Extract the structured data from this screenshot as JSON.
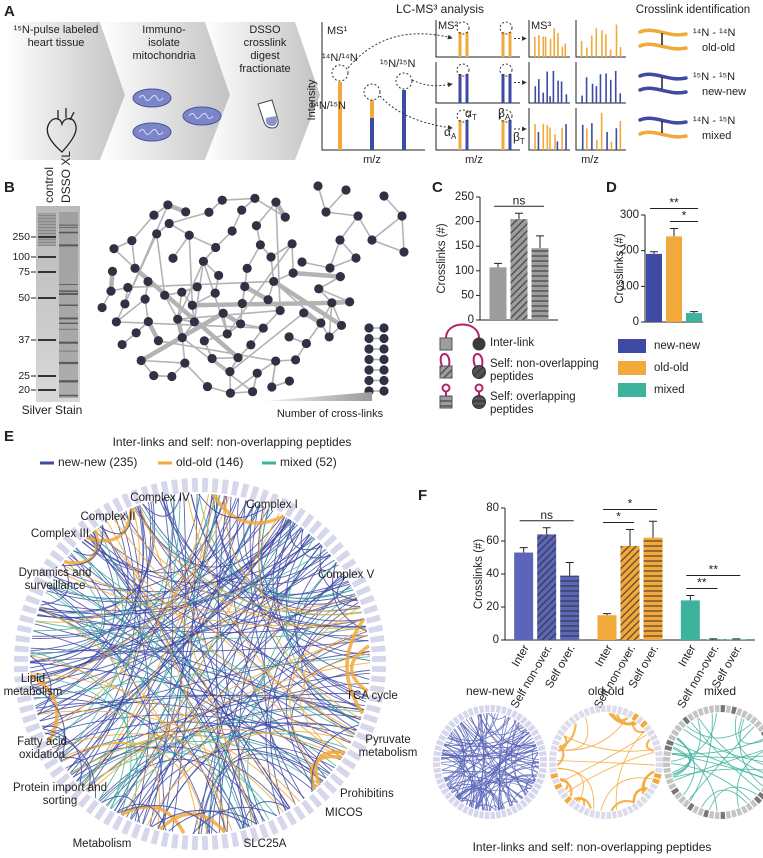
{
  "figure": {
    "panel_labels": [
      "A",
      "B",
      "C",
      "D",
      "E",
      "F"
    ],
    "a": {
      "steps": [
        "¹⁵N-pulse labeled heart tissue",
        "Immuno-isolate mitochondria",
        "DSSO crosslink digest fractionate"
      ],
      "ms_title": "LC-MS³ analysis",
      "ms1": "MS¹",
      "ms2": "MS²",
      "ms3": "MS³",
      "y_label": "Intensity",
      "x_label": "m/z",
      "peak_labels": [
        "¹⁴N/¹⁴N",
        "¹⁵N/¹⁵N",
        "¹⁴N/¹⁵N"
      ],
      "fragments": [
        {
          "symbol": "α",
          "sub": "A"
        },
        {
          "symbol": "α",
          "sub": "T"
        },
        {
          "symbol": "β",
          "sub": "A"
        },
        {
          "symbol": "β",
          "sub": "T"
        }
      ],
      "xl_title": "Crosslink identification",
      "xl_types": [
        {
          "isotopes": "¹⁴N - ¹⁴N",
          "label": "old-old"
        },
        {
          "isotopes": "¹⁵N - ¹⁵N",
          "label": "new-new"
        },
        {
          "isotopes": "¹⁴N - ¹⁵N",
          "label": "mixed"
        }
      ]
    },
    "b": {
      "lanes": [
        "control",
        "DSSO XL"
      ],
      "ladder": [
        250,
        100,
        75,
        50,
        37,
        25,
        20
      ],
      "stain": "Silver Stain",
      "network_caption": "Number of cross-links"
    },
    "e": {
      "title": "Inter-links and self: non-overlapping peptides",
      "legend": [
        {
          "label": "new-new (235)",
          "color": "#3e4aa3"
        },
        {
          "label": "old-old (146)",
          "color": "#f2a93b"
        },
        {
          "label": "mixed (52)",
          "color": "#3db39e"
        }
      ],
      "sectors": [
        "Complex IV",
        "Complex I",
        "Complex II",
        "Complex III",
        "Complex V",
        "Dynamics and surveillance",
        "Lipid metabolism",
        "TCA cycle",
        "Fatty acid oxidation",
        "Pyruvate metabolism",
        "Protein import and sorting",
        "Prohibitins",
        "MICOS",
        "Metabolism",
        "SLC25A"
      ]
    }
  },
  "chart_data": [
    {
      "type": "bar",
      "ylabel": "Crosslinks (#)",
      "categories": [
        "Inter-link",
        "Self: non-overlapping peptides",
        "Self: overlapping peptides"
      ],
      "values": [
        107,
        205,
        146
      ],
      "errors": [
        8,
        12,
        25
      ],
      "color": "#9d9d9d",
      "patterns": [
        "solid",
        "diagonal",
        "horizontal"
      ],
      "ylim": [
        0,
        250
      ],
      "yticks": [
        0,
        50,
        100,
        150,
        200,
        250
      ],
      "legend": "below",
      "significance": [
        {
          "pair": [
            0,
            2
          ],
          "label": "ns"
        }
      ]
    },
    {
      "type": "bar",
      "ylabel": "Crosslinks (#)",
      "categories": [
        "new-new",
        "old-old",
        "mixed"
      ],
      "values": [
        191,
        240,
        25
      ],
      "errors": [
        6,
        22,
        4
      ],
      "colors": [
        "#3e4aa3",
        "#f2a93b",
        "#3db39e"
      ],
      "ylim": [
        0,
        300
      ],
      "yticks": [
        0,
        100,
        200,
        300
      ],
      "legend": "below",
      "significance": [
        {
          "pair": [
            1,
            2
          ],
          "label": "*"
        },
        {
          "pair": [
            0,
            2
          ],
          "label": "**"
        }
      ]
    },
    {
      "type": "bar",
      "ylabel": "Crosslinks (#)",
      "categories": [
        "Inter",
        "Self non-over.",
        "Self over."
      ],
      "patterns": [
        "solid",
        "diagonal",
        "horizontal"
      ],
      "series": [
        {
          "name": "new-new",
          "color": "#5b66b8",
          "values": [
            53,
            64,
            39
          ],
          "errors": [
            3,
            4,
            8
          ],
          "significance": [
            {
              "pair": [
                0,
                2
              ],
              "label": "ns"
            }
          ]
        },
        {
          "name": "old-old",
          "color": "#f2a93b",
          "values": [
            15,
            57,
            62
          ],
          "errors": [
            1,
            10,
            10
          ],
          "significance": [
            {
              "pair": [
                0,
                1
              ],
              "label": "*"
            },
            {
              "pair": [
                0,
                2
              ],
              "label": "*"
            }
          ]
        },
        {
          "name": "mixed",
          "color": "#3db39e",
          "values": [
            24,
            0.4,
            0.4
          ],
          "errors": [
            3,
            0.3,
            0.3
          ],
          "significance": [
            {
              "pair": [
                0,
                1
              ],
              "label": "**"
            },
            {
              "pair": [
                0,
                2
              ],
              "label": "**"
            }
          ]
        }
      ],
      "ylim": [
        0,
        80
      ],
      "yticks": [
        0,
        20,
        40,
        60,
        80
      ],
      "caption": "Inter-links and self: non-overlapping peptides"
    }
  ]
}
